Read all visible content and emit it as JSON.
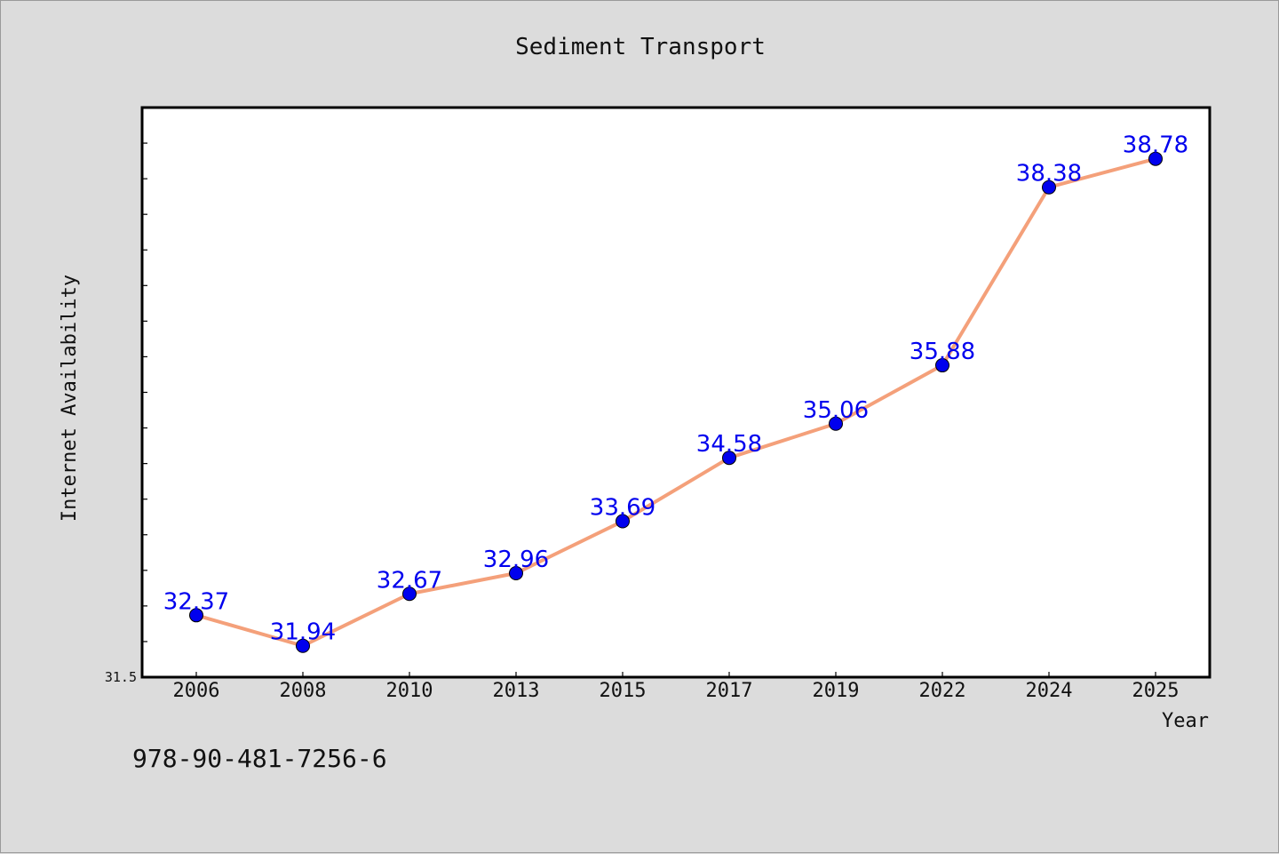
{
  "chart_data": {
    "type": "line",
    "title": "Sediment Transport",
    "xlabel": "Year",
    "ylabel": "Internet Availability",
    "categories": [
      "2006",
      "2008",
      "2010",
      "2013",
      "2015",
      "2017",
      "2019",
      "2022",
      "2024",
      "2025"
    ],
    "series": [
      {
        "values": [
          32.37,
          31.94,
          32.67,
          32.96,
          33.69,
          34.58,
          35.06,
          35.88,
          38.38,
          38.78
        ]
      }
    ],
    "ylim": [
      31.5,
      39.5
    ],
    "y_tick_labels": [
      "31.5"
    ],
    "data_labels": [
      "32.37",
      "31.94",
      "32.67",
      "32.96",
      "33.69",
      "34.58",
      "35.06",
      "35.88",
      "38.38",
      "38.78"
    ],
    "grid": false,
    "colors": {
      "line": "#f4a07a",
      "marker": "#0000ee",
      "label": "#0000ee",
      "background": "#dcdcdc",
      "plot_bg": "#ffffff"
    }
  },
  "footer": {
    "isbn": "978-90-481-7256-6"
  }
}
